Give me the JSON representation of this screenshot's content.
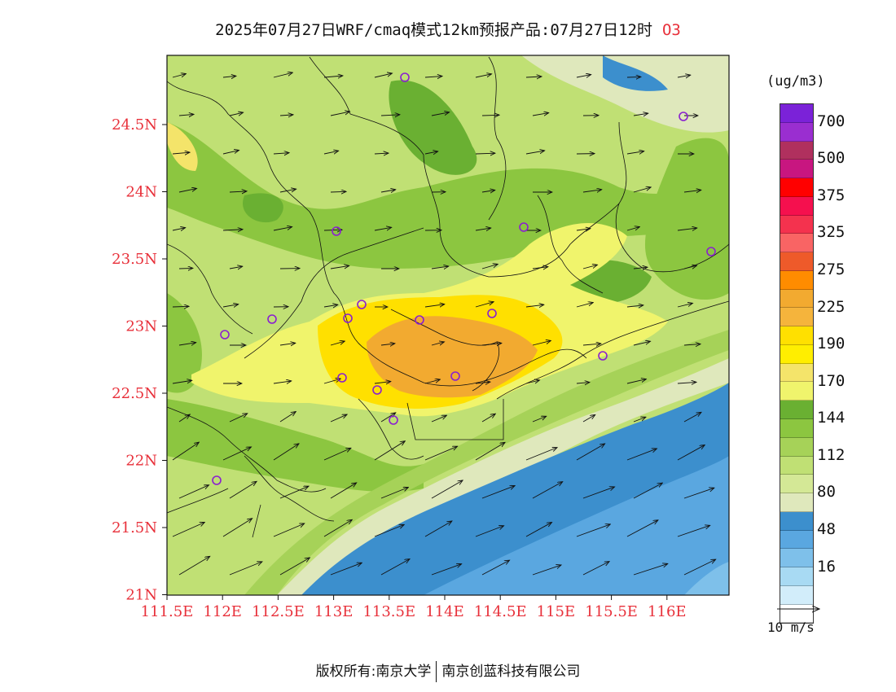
{
  "title": {
    "main": "2025年07月27日WRF/cmaq模式12km预报产品:07月27日12时",
    "pollutant": "O3"
  },
  "legend": {
    "unit": "(ug/m3)",
    "colors_top_to_bottom": [
      "#7b22d8",
      "#9a2ed0",
      "#b0305e",
      "#c81680",
      "#ff0000",
      "#f5104e",
      "#f4324e",
      "#f96464",
      "#ee5a2a",
      "#ff8c00",
      "#f2aa30",
      "#f5b43c",
      "#ffe000",
      "#ffee00",
      "#f4e46a",
      "#f0f46c",
      "#6ab032",
      "#8cc640",
      "#a6d258",
      "#c0e074",
      "#d4e896",
      "#dfe8bc",
      "#3c8fcd",
      "#5aa7e0",
      "#7ec0ea",
      "#a8daf3",
      "#d2edfa",
      "#ffffff"
    ],
    "labels": [
      "700",
      "500",
      "375",
      "325",
      "275",
      "225",
      "190",
      "170",
      "144",
      "112",
      "80",
      "48",
      "16"
    ]
  },
  "scale": {
    "label": "10 m/s"
  },
  "axes": {
    "x_ticks": [
      "111.5E",
      "112E",
      "112.5E",
      "113E",
      "113.5E",
      "114E",
      "114.5E",
      "115E",
      "115.5E",
      "116E"
    ],
    "y_ticks": [
      "24.5N",
      "24N",
      "23.5N",
      "23N",
      "22.5N",
      "22N",
      "21.5N",
      "21N"
    ]
  },
  "footer": {
    "left": "版权所有:南京大学",
    "right": "南京创蓝科技有限公司"
  },
  "colors": {
    "axis_label": "#e8303a",
    "ocean_deep": "#3c8fcd",
    "ocean_mid": "#5aa7e0",
    "land_light": "#c0e074",
    "land_dark": "#6ab032",
    "ozone_high": "#ffe000",
    "ozone_peak": "#f2aa30",
    "station_marker": "#8a1fd0"
  }
}
